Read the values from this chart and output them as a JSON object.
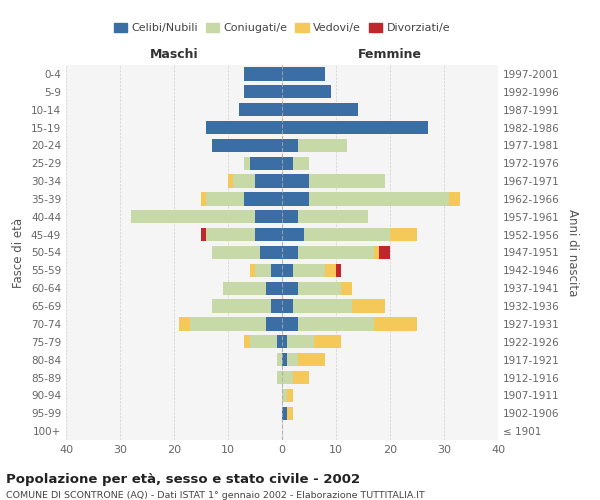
{
  "age_groups": [
    "0-4",
    "5-9",
    "10-14",
    "15-19",
    "20-24",
    "25-29",
    "30-34",
    "35-39",
    "40-44",
    "45-49",
    "50-54",
    "55-59",
    "60-64",
    "65-69",
    "70-74",
    "75-79",
    "80-84",
    "85-89",
    "90-94",
    "95-99",
    "100+"
  ],
  "birth_years": [
    "1997-2001",
    "1992-1996",
    "1987-1991",
    "1982-1986",
    "1977-1981",
    "1972-1976",
    "1967-1971",
    "1962-1966",
    "1957-1961",
    "1952-1956",
    "1947-1951",
    "1942-1946",
    "1937-1941",
    "1932-1936",
    "1927-1931",
    "1922-1926",
    "1917-1921",
    "1912-1916",
    "1907-1911",
    "1902-1906",
    "≤ 1901"
  ],
  "male_celibi": [
    7,
    7,
    8,
    14,
    13,
    6,
    5,
    7,
    5,
    5,
    4,
    2,
    3,
    2,
    3,
    1,
    0,
    0,
    0,
    0,
    0
  ],
  "male_coniugati": [
    0,
    0,
    0,
    0,
    0,
    1,
    4,
    7,
    23,
    9,
    9,
    3,
    8,
    11,
    14,
    5,
    1,
    1,
    0,
    0,
    0
  ],
  "male_vedovi": [
    0,
    0,
    0,
    0,
    0,
    0,
    1,
    1,
    0,
    0,
    0,
    1,
    0,
    0,
    2,
    1,
    0,
    0,
    0,
    0,
    0
  ],
  "male_divorziati": [
    0,
    0,
    0,
    0,
    0,
    0,
    0,
    0,
    0,
    1,
    0,
    0,
    0,
    0,
    0,
    0,
    0,
    0,
    0,
    0,
    0
  ],
  "female_celibi": [
    8,
    9,
    14,
    27,
    3,
    2,
    5,
    5,
    3,
    4,
    3,
    2,
    3,
    2,
    3,
    1,
    1,
    0,
    0,
    1,
    0
  ],
  "female_coniugati": [
    0,
    0,
    0,
    0,
    9,
    3,
    14,
    26,
    13,
    16,
    14,
    6,
    8,
    11,
    14,
    5,
    2,
    2,
    1,
    0,
    0
  ],
  "female_vedovi": [
    0,
    0,
    0,
    0,
    0,
    0,
    0,
    2,
    0,
    5,
    1,
    2,
    2,
    6,
    8,
    5,
    5,
    3,
    1,
    1,
    0
  ],
  "female_divorziati": [
    0,
    0,
    0,
    0,
    0,
    0,
    0,
    0,
    0,
    0,
    2,
    1,
    0,
    0,
    0,
    0,
    0,
    0,
    0,
    0,
    0
  ],
  "color_celibi": "#3a6ea5",
  "color_coniugati": "#c8d9a8",
  "color_vedovi": "#f5c85a",
  "color_divorziati": "#c0272d",
  "xlim": 40,
  "title": "Popolazione per età, sesso e stato civile - 2002",
  "subtitle": "COMUNE DI SCONTRONE (AQ) - Dati ISTAT 1° gennaio 2002 - Elaborazione TUTTITALIA.IT",
  "ylabel_left": "Fasce di età",
  "ylabel_right": "Anni di nascita",
  "xlabel_left": "Maschi",
  "xlabel_right": "Femmine",
  "bg_color": "#f5f5f5",
  "grid_color": "#cccccc"
}
